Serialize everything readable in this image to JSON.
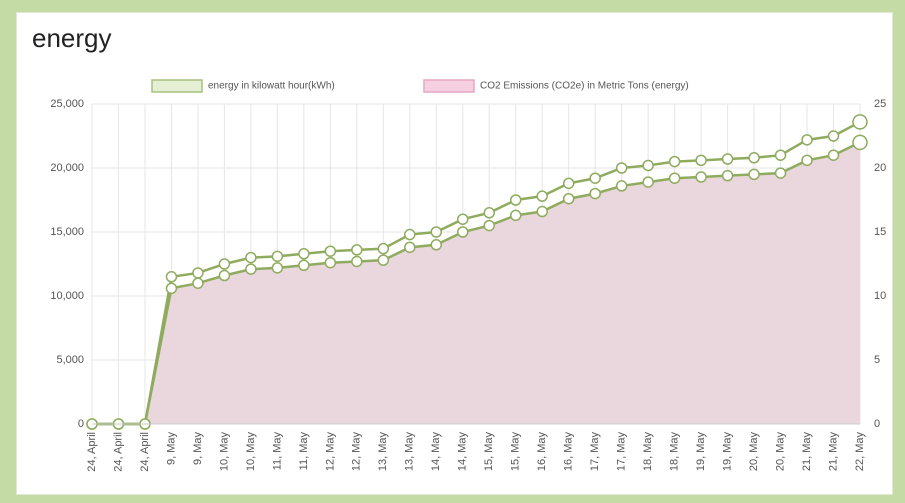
{
  "chart_data": {
    "type": "line",
    "title": "energy",
    "categories": [
      "24, April",
      "24, April",
      "24, April",
      "9, May",
      "9, May",
      "10, May",
      "10, May",
      "11, May",
      "11, May",
      "12, May",
      "12, May",
      "13, May",
      "13, May",
      "14, May",
      "14, May",
      "15, May",
      "15, May",
      "16, May",
      "16, May",
      "17, May",
      "17, May",
      "18, May",
      "18, May",
      "19, May",
      "19, May",
      "20, May",
      "20, May",
      "21, May",
      "21, May",
      "22, May"
    ],
    "series": [
      {
        "name": "energy in kilowatt hour(kWh)",
        "color": "#8fab5e",
        "legend_color": "#e4efd4",
        "values": [
          0,
          0,
          0,
          11500,
          11800,
          12500,
          13000,
          13100,
          13300,
          13500,
          13600,
          13700,
          14800,
          15000,
          16000,
          16500,
          17500,
          17800,
          18800,
          19200,
          20000,
          20200,
          20500,
          20600,
          20700,
          20800,
          21000,
          22200,
          22500,
          23600
        ]
      },
      {
        "name": "CO2 Emissions (CO2e) in Metric Tons (energy)",
        "color": "#8fab5e",
        "legend_color": "#f6d0e1",
        "fill": "#ead7dd",
        "axis": "y2",
        "values": [
          0,
          0,
          0,
          10.6,
          11,
          11.6,
          12.1,
          12.2,
          12.4,
          12.6,
          12.7,
          12.8,
          13.8,
          14,
          15,
          15.5,
          16.3,
          16.6,
          17.6,
          18,
          18.6,
          18.9,
          19.2,
          19.3,
          19.4,
          19.5,
          19.6,
          20.6,
          21,
          22
        ]
      }
    ],
    "ylim": [
      0,
      25000
    ],
    "yticks": [
      0,
      {
        "value": 5000,
        "label": "5,000"
      },
      {
        "value": 10000,
        "label": "10,000"
      },
      {
        "value": 15000,
        "label": "15,000"
      },
      {
        "value": 20000,
        "label": "20,000"
      },
      {
        "value": 25000,
        "label": "25,000"
      }
    ],
    "y2lim": [
      0,
      25
    ],
    "y2ticks": [
      0,
      5,
      10,
      15,
      20,
      25
    ],
    "grid": true,
    "legend": "top"
  }
}
